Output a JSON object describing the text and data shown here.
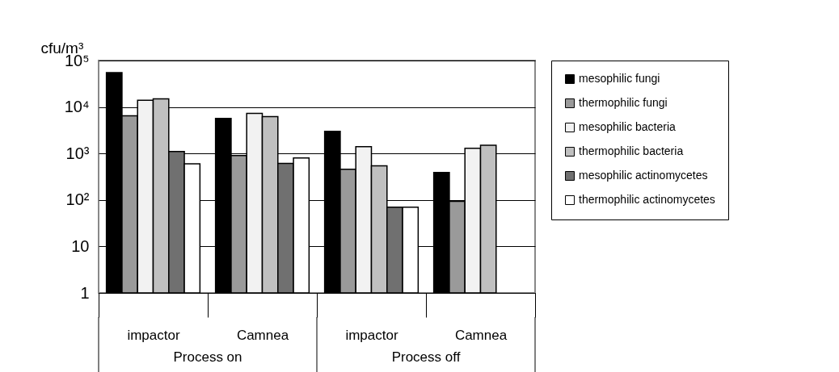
{
  "chart_data": {
    "type": "bar",
    "ylabel": "cfu/m³",
    "categories": [
      "impactor",
      "Camnea",
      "impactor",
      "Camnea"
    ],
    "annotations": [
      "Process on",
      "Process off"
    ],
    "series": [
      {
        "name": "mesophilic fungi",
        "color": "#000000",
        "values": [
          55000,
          5700,
          3000,
          390
        ]
      },
      {
        "name": "thermophilic fungi",
        "color": "#9a9a9a",
        "values": [
          6500,
          900,
          460,
          93
        ]
      },
      {
        "name": "mesophilic bacteria",
        "color": "#f2f2f2",
        "values": [
          14000,
          7300,
          1400,
          1300
        ]
      },
      {
        "name": "thermophilic bacteria",
        "color": "#c0c0c0",
        "values": [
          15000,
          6200,
          540,
          1500
        ]
      },
      {
        "name": "mesophilic actinomycetes",
        "color": "#707070",
        "values": [
          1100,
          610,
          70,
          null
        ]
      },
      {
        "name": "thermophilic actinomycetes",
        "color": "#ffffff",
        "values": [
          600,
          800,
          70,
          null
        ]
      }
    ],
    "log": true,
    "ylim": [
      1,
      100000
    ],
    "yticks": [
      1,
      10,
      {
        "value": 100,
        "label": "10²"
      },
      {
        "value": 1000,
        "label": "10³"
      },
      {
        "value": 10000,
        "label": "10⁴"
      },
      {
        "value": 100000,
        "label": "10⁵"
      }
    ],
    "grid": "y",
    "legend": "right"
  }
}
